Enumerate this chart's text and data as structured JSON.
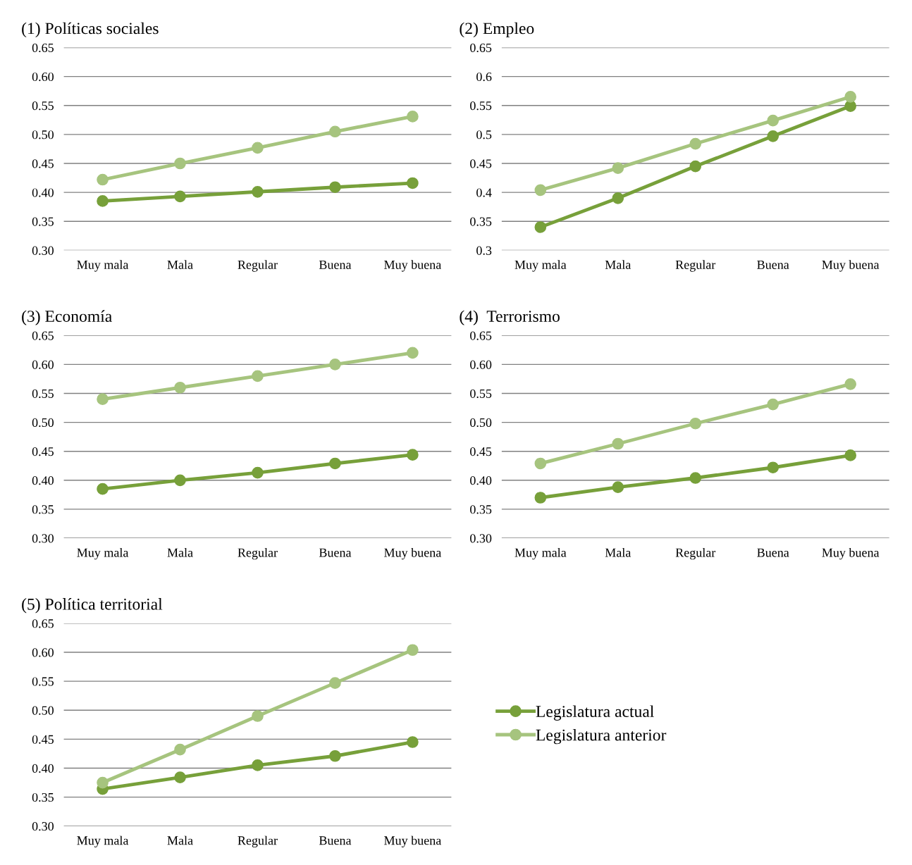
{
  "chart_data": [
    {
      "type": "line",
      "title": "(1) Políticas sociales",
      "categories": [
        "Muy mala",
        "Mala",
        "Regular",
        "Buena",
        "Muy buena"
      ],
      "ylim": [
        0.3,
        0.65
      ],
      "yticks": [
        {
          "value": 0.3,
          "label": "0.30"
        },
        {
          "value": 0.35,
          "label": "0.35"
        },
        {
          "value": 0.4,
          "label": "0.40"
        },
        {
          "value": 0.45,
          "label": "0.45"
        },
        {
          "value": 0.5,
          "label": "0.50"
        },
        {
          "value": 0.55,
          "label": "0.55"
        },
        {
          "value": 0.6,
          "label": "0.60"
        },
        {
          "value": 0.65,
          "label": "0.65"
        }
      ],
      "grid": "y",
      "marker": "circle",
      "series": [
        {
          "color": "#77a03a",
          "values": [
            0.385,
            0.393,
            0.401,
            0.409,
            0.416
          ]
        },
        {
          "color": "#a6c47e",
          "values": [
            0.422,
            0.45,
            0.477,
            0.505,
            0.531
          ]
        }
      ]
    },
    {
      "type": "line",
      "title": "(2) Empleo",
      "categories": [
        "Muy mala",
        "Mala",
        "Regular",
        "Buena",
        "Muy buena"
      ],
      "ylim": [
        0.3,
        0.65
      ],
      "yticks": [
        0.3,
        0.35,
        0.4,
        0.45,
        0.5,
        0.55,
        0.6,
        0.65
      ],
      "grid": "y",
      "marker": "circle",
      "series": [
        {
          "color": "#77a03a",
          "values": [
            0.34,
            0.39,
            0.445,
            0.497,
            0.549
          ]
        },
        {
          "color": "#a6c47e",
          "values": [
            0.404,
            0.442,
            0.484,
            0.524,
            0.565
          ]
        }
      ]
    },
    {
      "type": "line",
      "title": "(3) Economía",
      "categories": [
        "Muy mala",
        "Mala",
        "Regular",
        "Buena",
        "Muy buena"
      ],
      "ylim": [
        0.3,
        0.65
      ],
      "yticks": [
        {
          "value": 0.3,
          "label": "0.30"
        },
        {
          "value": 0.35,
          "label": "0.35"
        },
        {
          "value": 0.4,
          "label": "0.40"
        },
        {
          "value": 0.45,
          "label": "0.45"
        },
        {
          "value": 0.5,
          "label": "0.50"
        },
        {
          "value": 0.55,
          "label": "0.55"
        },
        {
          "value": 0.6,
          "label": "0.60"
        },
        {
          "value": 0.65,
          "label": "0.65"
        }
      ],
      "grid": "y",
      "marker": "circle",
      "series": [
        {
          "color": "#77a03a",
          "values": [
            0.385,
            0.4,
            0.413,
            0.429,
            0.444
          ]
        },
        {
          "color": "#a6c47e",
          "values": [
            0.54,
            0.56,
            0.58,
            0.6,
            0.62
          ]
        }
      ]
    },
    {
      "type": "line",
      "title": "(4)  Terrorismo",
      "categories": [
        "Muy mala",
        "Mala",
        "Regular",
        "Buena",
        "Muy buena"
      ],
      "ylim": [
        0.3,
        0.65
      ],
      "yticks": [
        {
          "value": 0.3,
          "label": "0.30"
        },
        {
          "value": 0.35,
          "label": "0.35"
        },
        {
          "value": 0.4,
          "label": "0.40"
        },
        {
          "value": 0.45,
          "label": "0.45"
        },
        {
          "value": 0.5,
          "label": "0.50"
        },
        {
          "value": 0.55,
          "label": "0.55"
        },
        {
          "value": 0.6,
          "label": "0.60"
        },
        {
          "value": 0.65,
          "label": "0.65"
        }
      ],
      "grid": "y",
      "marker": "circle",
      "series": [
        {
          "color": "#77a03a",
          "values": [
            0.37,
            0.388,
            0.404,
            0.422,
            0.443
          ]
        },
        {
          "color": "#a6c47e",
          "values": [
            0.429,
            0.463,
            0.498,
            0.531,
            0.566
          ]
        }
      ]
    },
    {
      "type": "line",
      "title": "(5) Política territorial",
      "categories": [
        "Muy mala",
        "Mala",
        "Regular",
        "Buena",
        "Muy buena"
      ],
      "ylim": [
        0.3,
        0.65
      ],
      "yticks": [
        {
          "value": 0.3,
          "label": "0.30"
        },
        {
          "value": 0.35,
          "label": "0.35"
        },
        {
          "value": 0.4,
          "label": "0.40"
        },
        {
          "value": 0.45,
          "label": "0.45"
        },
        {
          "value": 0.5,
          "label": "0.50"
        },
        {
          "value": 0.55,
          "label": "0.55"
        },
        {
          "value": 0.6,
          "label": "0.60"
        },
        {
          "value": 0.65,
          "label": "0.65"
        }
      ],
      "grid": "y",
      "marker": "circle",
      "legend": "right",
      "series": [
        {
          "name": "Legislatura actual",
          "color": "#77a03a",
          "values": [
            0.364,
            0.384,
            0.405,
            0.421,
            0.445
          ]
        },
        {
          "name": "Legislatura anterior",
          "color": "#a6c47e",
          "values": [
            0.375,
            0.432,
            0.49,
            0.547,
            0.604
          ]
        }
      ]
    }
  ]
}
